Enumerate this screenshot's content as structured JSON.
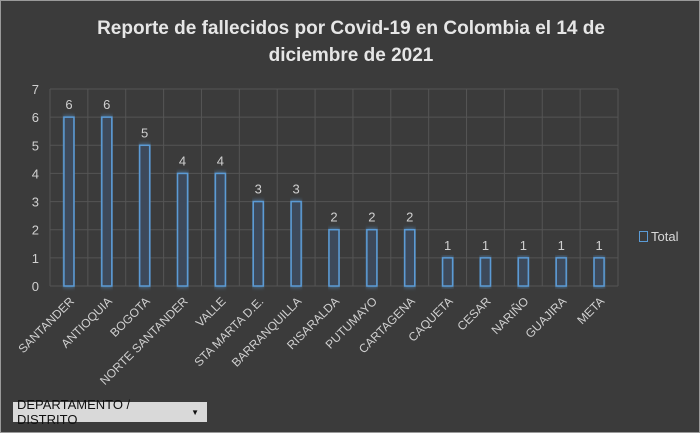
{
  "chart_data": {
    "type": "bar",
    "title": "Reporte de fallecidos por Covid-19 en Colombia el 14 de diciembre de 2021",
    "categories": [
      "SANTANDER",
      "ANTIOQUIA",
      "BOGOTA",
      "NORTE SANTANDER",
      "VALLE",
      "STA MARTA D.E.",
      "BARRANQUILLA",
      "RISARALDA",
      "PUTUMAYO",
      "CARTAGENA",
      "CAQUETA",
      "CESAR",
      "NARIÑO",
      "GUAJIRA",
      "META"
    ],
    "series": [
      {
        "name": "Total",
        "values": [
          6,
          6,
          5,
          4,
          4,
          3,
          3,
          2,
          2,
          2,
          1,
          1,
          1,
          1,
          1
        ]
      }
    ],
    "ylim": [
      0,
      7
    ],
    "yticks": [
      0,
      1,
      2,
      3,
      4,
      5,
      6,
      7
    ],
    "grid": true,
    "legend": "right",
    "bar_color": "#5b9bd5"
  },
  "filter": {
    "label": "DEPARTAMENTO / DISTRITO"
  }
}
